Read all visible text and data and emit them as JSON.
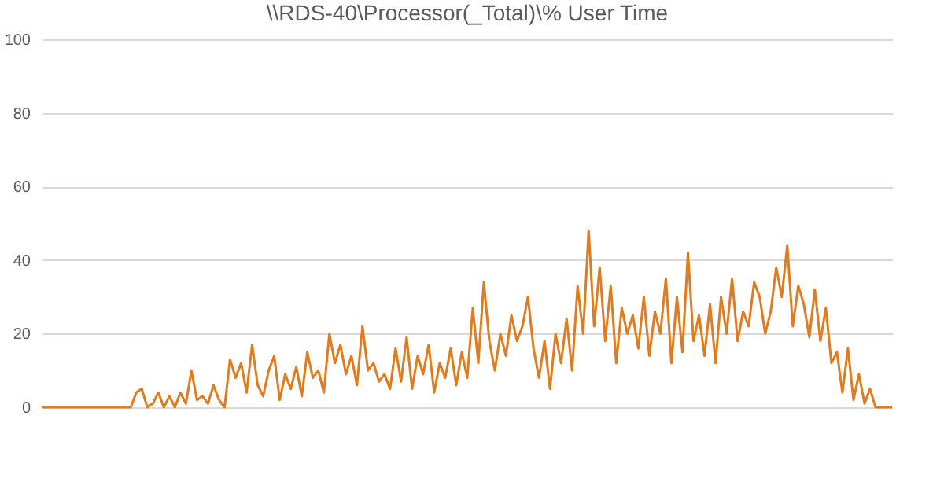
{
  "chart_data": {
    "type": "line",
    "title": "\\\\RDS-40\\Processor(_Total)\\% User Time",
    "categories": [
      null,
      null,
      null,
      null,
      null,
      null,
      null,
      null,
      null,
      null,
      null,
      null,
      null,
      null,
      null,
      null,
      null,
      null,
      null,
      null,
      null,
      null,
      null,
      null,
      null,
      null,
      null,
      null,
      null,
      null,
      null,
      null,
      null,
      null,
      null,
      null,
      null,
      null,
      null,
      null,
      null,
      null,
      null,
      null,
      null,
      null,
      null,
      null,
      null,
      null,
      null,
      null,
      null,
      null,
      null,
      null,
      null,
      null,
      null,
      null,
      null,
      null,
      null,
      null,
      null,
      null,
      null,
      null,
      null,
      null,
      null,
      null,
      null,
      null,
      null,
      null,
      null,
      null,
      null,
      null,
      null,
      null,
      null,
      null,
      null,
      null,
      null,
      null,
      null,
      null,
      null,
      null,
      null,
      null,
      null,
      null,
      null,
      null,
      null,
      null,
      null,
      null,
      null,
      null,
      null,
      null,
      null,
      null,
      null,
      null,
      null,
      null,
      null,
      null,
      null,
      null,
      null,
      null,
      null,
      null,
      null,
      null,
      null,
      null,
      null,
      null,
      null,
      null,
      null,
      null,
      null,
      null,
      null,
      null,
      null,
      null,
      null,
      null,
      null,
      null,
      null,
      null,
      null,
      null,
      null,
      null,
      null,
      null,
      null,
      null,
      null,
      null,
      null,
      null,
      null
    ],
    "series": [
      {
        "color": "#e07b20",
        "values": [
          0,
          0,
          0,
          0,
          0,
          0,
          0,
          0,
          0,
          0,
          0,
          0,
          0,
          0,
          0,
          0,
          0,
          4,
          5,
          0,
          1,
          4,
          0,
          3,
          0,
          4,
          1,
          10,
          2,
          3,
          1,
          6,
          2,
          0,
          13,
          8,
          12,
          4,
          17,
          6,
          3,
          10,
          14,
          2,
          9,
          5,
          11,
          3,
          15,
          8,
          10,
          4,
          20,
          12,
          17,
          9,
          14,
          6,
          22,
          10,
          12,
          7,
          9,
          5,
          16,
          7,
          19,
          5,
          14,
          9,
          17,
          4,
          12,
          8,
          16,
          6,
          15,
          8,
          27,
          12,
          34,
          18,
          10,
          20,
          14,
          25,
          18,
          22,
          30,
          16,
          8,
          18,
          5,
          20,
          12,
          24,
          10,
          33,
          20,
          48,
          22,
          38,
          18,
          33,
          12,
          27,
          20,
          25,
          16,
          30,
          14,
          26,
          20,
          35,
          12,
          30,
          15,
          42,
          18,
          25,
          14,
          28,
          12,
          30,
          20,
          35,
          18,
          26,
          22,
          34,
          30,
          20,
          26,
          38,
          30,
          44,
          22,
          33,
          28,
          19,
          32,
          18,
          27,
          12,
          15,
          4,
          16,
          2,
          9,
          1,
          5,
          0,
          0,
          0,
          0
        ]
      }
    ],
    "ylim": [
      0,
      100
    ],
    "yticks": [
      0,
      20,
      40,
      60,
      80,
      100
    ],
    "grid": "y",
    "legend": false
  }
}
